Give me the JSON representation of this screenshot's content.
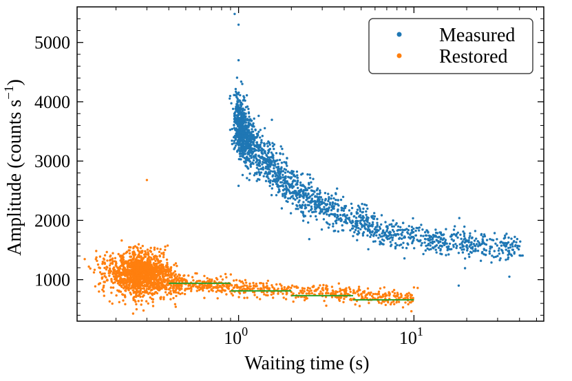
{
  "chart_data": {
    "type": "scatter",
    "xlabel": "Waiting time (s)",
    "ylabel": "Amplitude (counts s",
    "ylabel_sup": "−1",
    "ylabel_close": ")",
    "xscale": "log",
    "xlim": [
      0.12,
      55
    ],
    "ylim": [
      300,
      5600
    ],
    "x_ticks": [
      {
        "value": 1,
        "base": "10",
        "exp": "0"
      },
      {
        "value": 10,
        "base": "10",
        "exp": "1"
      }
    ],
    "y_ticks": [
      1000,
      2000,
      3000,
      4000,
      5000
    ],
    "y_tick_labels": [
      "1000",
      "2000",
      "3000",
      "4000",
      "5000"
    ],
    "grid": false,
    "legend_position": "top-right",
    "series": [
      {
        "name": "Measured",
        "color": "#1f77b4",
        "marker": "dot",
        "sample": [
          {
            "x": 0.95,
            "y": 5480
          },
          {
            "x": 1.0,
            "y": 5300
          },
          {
            "x": 1.0,
            "y": 4700
          },
          {
            "x": 1.05,
            "y": 4300
          },
          {
            "x": 1.1,
            "y": 3800
          },
          {
            "x": 1.2,
            "y": 3400
          },
          {
            "x": 1.4,
            "y": 3050
          },
          {
            "x": 1.7,
            "y": 2800
          },
          {
            "x": 2.0,
            "y": 2600
          },
          {
            "x": 2.5,
            "y": 2450
          },
          {
            "x": 3.0,
            "y": 2350
          },
          {
            "x": 4.0,
            "y": 2200
          },
          {
            "x": 5.0,
            "y": 2000
          },
          {
            "x": 7.0,
            "y": 1900
          },
          {
            "x": 10.0,
            "y": 1700
          },
          {
            "x": 15.0,
            "y": 1600
          },
          {
            "x": 20.0,
            "y": 1550
          },
          {
            "x": 25.0,
            "y": 1620
          },
          {
            "x": 30.0,
            "y": 1400
          },
          {
            "x": 35.0,
            "y": 1050
          },
          {
            "x": 38.0,
            "y": 1580
          },
          {
            "x": 18.0,
            "y": 900
          }
        ]
      },
      {
        "name": "Restored",
        "color": "#ff7f0e",
        "marker": "dot",
        "sample": [
          {
            "x": 0.14,
            "y": 1220
          },
          {
            "x": 0.16,
            "y": 800
          },
          {
            "x": 0.2,
            "y": 1300
          },
          {
            "x": 0.25,
            "y": 1200
          },
          {
            "x": 0.28,
            "y": 1050
          },
          {
            "x": 0.3,
            "y": 2680
          },
          {
            "x": 0.35,
            "y": 1000
          },
          {
            "x": 0.5,
            "y": 960
          },
          {
            "x": 0.7,
            "y": 930
          },
          {
            "x": 1.0,
            "y": 870
          },
          {
            "x": 1.5,
            "y": 820
          },
          {
            "x": 2.0,
            "y": 790
          },
          {
            "x": 3.0,
            "y": 760
          },
          {
            "x": 4.0,
            "y": 720
          },
          {
            "x": 6.0,
            "y": 680
          },
          {
            "x": 8.0,
            "y": 650
          },
          {
            "x": 10.0,
            "y": 870
          },
          {
            "x": 10.5,
            "y": 860
          }
        ]
      }
    ],
    "lines": [
      {
        "color": "#2ca02c",
        "x": [
          0.4,
          0.9
        ],
        "y": [
          940,
          940
        ]
      },
      {
        "color": "#2ca02c",
        "x": [
          0.9,
          2.0
        ],
        "y": [
          810,
          810
        ]
      },
      {
        "color": "#2ca02c",
        "x": [
          2.0,
          4.5
        ],
        "y": [
          730,
          730
        ]
      },
      {
        "color": "#2ca02c",
        "x": [
          4.5,
          10.0
        ],
        "y": [
          660,
          660
        ]
      }
    ]
  }
}
